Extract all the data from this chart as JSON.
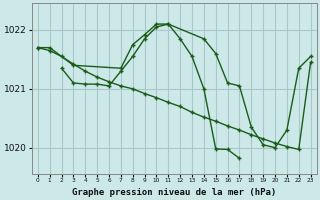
{
  "background_color": "#cce8e8",
  "line_color": "#1a5c1a",
  "grid_color": "#a8c8c8",
  "title": "Graphe pression niveau de la mer (hPa)",
  "xlabel_ticks": [
    "0",
    "1",
    "2",
    "3",
    "4",
    "5",
    "6",
    "7",
    "8",
    "9",
    "10",
    "11",
    "12",
    "13",
    "14",
    "15",
    "16",
    "17",
    "18",
    "19",
    "20",
    "21",
    "22",
    "23"
  ],
  "ylim": [
    1019.55,
    1022.45
  ],
  "yticks": [
    1020,
    1021,
    1022
  ],
  "line1_x": [
    0,
    1,
    2,
    3,
    4,
    5,
    6,
    7,
    8,
    9,
    10,
    11,
    12,
    13,
    14,
    15,
    16,
    17,
    18,
    19,
    20,
    21,
    22,
    23
  ],
  "line1_y": [
    1021.7,
    1021.65,
    1021.55,
    1021.42,
    1021.3,
    1021.2,
    1021.12,
    1021.05,
    1021.0,
    1020.92,
    1020.85,
    1020.77,
    1020.7,
    1020.6,
    1020.52,
    1020.45,
    1020.37,
    1020.3,
    1020.22,
    1020.15,
    1020.08,
    1020.02,
    1019.97,
    1021.45
  ],
  "line2_x": [
    0,
    1,
    3,
    7,
    8,
    9,
    10,
    11,
    14,
    15,
    16,
    17,
    18,
    19,
    20,
    21,
    22,
    23
  ],
  "line2_y": [
    1021.7,
    1021.7,
    1021.4,
    1021.35,
    1021.75,
    1021.92,
    1022.1,
    1022.1,
    1021.85,
    1021.6,
    1021.1,
    1021.05,
    1020.35,
    1020.05,
    1020.0,
    1020.3,
    1021.35,
    1021.55
  ],
  "line3_x": [
    2,
    3,
    4,
    5,
    6,
    7,
    8,
    9,
    10,
    11,
    12,
    13,
    14,
    15,
    16,
    17
  ],
  "line3_y": [
    1021.35,
    1021.1,
    1021.08,
    1021.08,
    1021.05,
    1021.3,
    1021.55,
    1021.85,
    1022.05,
    1022.1,
    1021.85,
    1021.55,
    1021.0,
    1019.98,
    1019.97,
    1019.82
  ]
}
